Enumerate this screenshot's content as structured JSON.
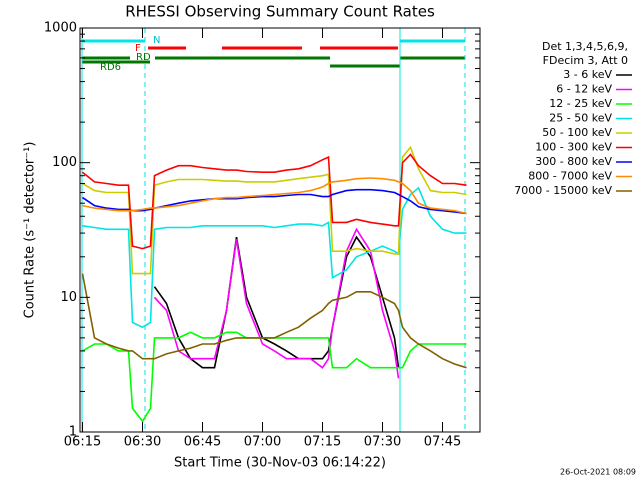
{
  "chart_data": {
    "type": "line",
    "title": "RHESSI Observing Summary Count Rates",
    "x_label": "Start Time (30-Nov-03 06:14:22)",
    "y_label": "Count Rate (s⁻¹ detector⁻¹)",
    "legend_title": [
      "Det 1,3,4,5,6,9,",
      "FDecim 3, Att 0"
    ],
    "legend_position": "right",
    "footer": "26-Oct-2021 08:09",
    "annotations": [
      "N",
      "F",
      "RD",
      "RD6"
    ],
    "y_log": true,
    "xlim": [
      14.37,
      114.37
    ],
    "ylim": [
      1,
      1000
    ],
    "yticks": [
      1,
      10,
      100,
      1000
    ],
    "xticks": [
      {
        "value": 15,
        "label": "06:15"
      },
      {
        "value": 30,
        "label": "06:30"
      },
      {
        "value": 45,
        "label": "06:45"
      },
      {
        "value": 60,
        "label": "07:00"
      },
      {
        "value": 75,
        "label": "07:15"
      },
      {
        "value": 90,
        "label": "07:30"
      },
      {
        "value": 105,
        "label": "07:45"
      }
    ],
    "x": [
      15,
      18,
      21,
      24,
      26.5,
      27.5,
      30,
      32,
      33,
      36,
      39,
      42,
      45,
      48,
      51,
      53.5,
      56,
      60,
      63,
      66,
      69,
      72,
      75,
      76.5,
      77.5,
      81,
      83.5,
      87,
      90,
      93,
      94,
      95,
      97,
      99,
      102,
      105,
      108,
      111
    ],
    "series": [
      {
        "name": "3 - 6 keV",
        "color": "#000000",
        "values": [
          null,
          null,
          null,
          null,
          null,
          null,
          null,
          null,
          12,
          9,
          5,
          3.5,
          3,
          3,
          8,
          28,
          10,
          5,
          4.5,
          4,
          3.5,
          3.5,
          3.5,
          4,
          6,
          20,
          28,
          20,
          10,
          5,
          3,
          null,
          null,
          null,
          null,
          null,
          null,
          null
        ]
      },
      {
        "name": "6 - 12 keV",
        "color": "#ff00ff",
        "values": [
          null,
          null,
          null,
          null,
          null,
          null,
          null,
          null,
          10,
          8,
          4,
          3.5,
          3.5,
          3.5,
          8,
          27,
          9,
          4.5,
          4,
          3.5,
          3.5,
          3.5,
          3,
          3.5,
          6,
          22,
          32,
          22,
          8,
          4,
          2.5,
          null,
          null,
          null,
          null,
          null,
          null,
          null
        ]
      },
      {
        "name": "12 - 25 keV",
        "color": "#00ff00",
        "values": [
          4,
          4.5,
          4.5,
          4,
          4,
          1.5,
          1.2,
          1.5,
          5,
          5,
          5,
          5.5,
          5,
          5,
          5.5,
          5.5,
          5,
          5,
          5,
          5,
          5,
          5,
          5,
          5,
          3,
          3,
          3.5,
          3,
          3,
          3,
          3,
          3,
          4,
          4.5,
          4.5,
          4.5,
          4.5,
          4.5
        ]
      },
      {
        "name": "25 - 50 keV",
        "color": "#00e5e5",
        "values": [
          34,
          33,
          32,
          32,
          32,
          6.5,
          6,
          6.5,
          32,
          33,
          33,
          33,
          34,
          34,
          34,
          34,
          34,
          34,
          33,
          34,
          35,
          35,
          34,
          36,
          14,
          16,
          20,
          22,
          24,
          22,
          21,
          45,
          58,
          65,
          40,
          32,
          30,
          30
        ]
      },
      {
        "name": "50 - 100 keV",
        "color": "#cccc00",
        "values": [
          70,
          62,
          60,
          60,
          60,
          15,
          15,
          15,
          68,
          72,
          75,
          75,
          75,
          74,
          73,
          73,
          72,
          72,
          72,
          74,
          76,
          78,
          80,
          82,
          22,
          22,
          23,
          22,
          22,
          21,
          21,
          110,
          130,
          90,
          62,
          60,
          60,
          58
        ]
      },
      {
        "name": "100 - 300 keV",
        "color": "#ff0000",
        "values": [
          85,
          72,
          70,
          68,
          68,
          24,
          23,
          24,
          80,
          88,
          95,
          95,
          92,
          90,
          88,
          88,
          86,
          85,
          85,
          88,
          90,
          95,
          105,
          110,
          36,
          36,
          38,
          36,
          35,
          34,
          34,
          100,
          115,
          95,
          80,
          70,
          70,
          68
        ]
      },
      {
        "name": "300 - 800 keV",
        "color": "#0000ff",
        "values": [
          55,
          48,
          46,
          45,
          45,
          44,
          44,
          45,
          46,
          48,
          50,
          52,
          53,
          54,
          54,
          54,
          55,
          56,
          56,
          57,
          58,
          58,
          56,
          56,
          58,
          62,
          63,
          63,
          62,
          60,
          58,
          56,
          52,
          47,
          45,
          44,
          43,
          42
        ]
      },
      {
        "name": "800 - 7000 keV",
        "color": "#ff8c00",
        "values": [
          48,
          46,
          45,
          44,
          44,
          44,
          45,
          46,
          46,
          47,
          48,
          50,
          52,
          54,
          55,
          55,
          56,
          57,
          58,
          59,
          60,
          62,
          66,
          70,
          72,
          74,
          76,
          77,
          76,
          74,
          72,
          70,
          62,
          50,
          46,
          45,
          44,
          42
        ]
      },
      {
        "name": "7000 - 15000 keV",
        "color": "#806000",
        "values": [
          15,
          5,
          4.5,
          4.2,
          4,
          4,
          3.5,
          3.5,
          3.5,
          3.8,
          4,
          4.2,
          4.5,
          4.5,
          4.8,
          5,
          5,
          5,
          5,
          5.5,
          6,
          7,
          8,
          9,
          9.5,
          10,
          11,
          11,
          10,
          9,
          8,
          6,
          5,
          4.5,
          4,
          3.5,
          3.2,
          3
        ]
      }
    ]
  }
}
